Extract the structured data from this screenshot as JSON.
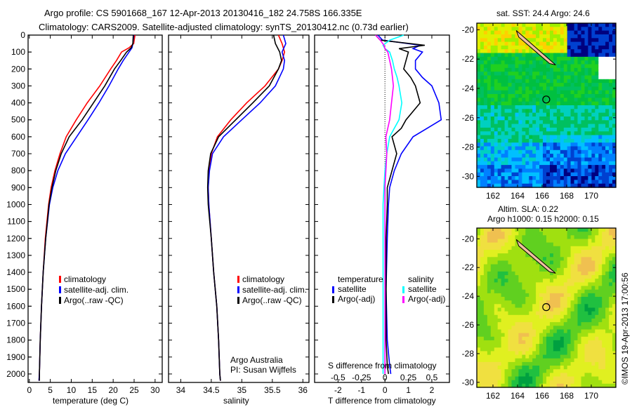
{
  "title": {
    "line1": "Argo profile: CS 5901668_167 12-Apr-2013 20130416_182 24.758S 166.335E",
    "line2": "Climatology: CARS2009. Satellite-adjusted climatology: synTS_20130412.nc (0.73d earlier)"
  },
  "colors": {
    "climatology": "#ff0000",
    "satellite": "#0000ff",
    "argo": "#000000",
    "sal_satellite": "#00ffff",
    "sal_argo": "#ff00ff"
  },
  "chart_data": [
    {
      "type": "line",
      "xlabel": "temperature (deg C)",
      "ylabel": "",
      "xlim": [
        -0.3,
        31.7
      ],
      "ylim": [
        2050,
        0
      ],
      "xticks": [
        "0",
        "5",
        "10",
        "15",
        "20",
        "25",
        "30"
      ],
      "yticks": [
        "0",
        "100",
        "200",
        "300",
        "400",
        "500",
        "600",
        "700",
        "800",
        "900",
        "1000",
        "1100",
        "1200",
        "1300",
        "1400",
        "1500",
        "1600",
        "1700",
        "1800",
        "1900",
        "2000"
      ],
      "legend": [
        "climatology",
        "satellite-adj. clim.",
        "Argo(..raw -QC)"
      ],
      "depth": [
        0,
        50,
        75,
        100,
        150,
        200,
        300,
        400,
        500,
        600,
        700,
        800,
        900,
        1000,
        1200,
        1400,
        1600,
        1800,
        2000,
        2040
      ],
      "series": [
        {
          "name": "climatology",
          "values": [
            25.2,
            24.9,
            23.8,
            22.0,
            20.8,
            19.4,
            16.8,
            13.8,
            11.2,
            8.8,
            7.3,
            6.1,
            5.2,
            4.6,
            3.8,
            3.3,
            2.9,
            2.6,
            2.4,
            2.3
          ]
        },
        {
          "name": "satellite-adj. clim.",
          "values": [
            24.9,
            24.7,
            24.5,
            23.8,
            22.4,
            21.2,
            19.0,
            16.6,
            14.0,
            11.3,
            8.6,
            6.8,
            5.6,
            4.8,
            3.9,
            3.3,
            2.9,
            2.6,
            2.4,
            2.3
          ]
        },
        {
          "name": "Argo(..raw -QC)",
          "values": [
            24.8,
            24.7,
            24.3,
            23.2,
            21.8,
            20.3,
            18.0,
            15.3,
            12.6,
            9.5,
            7.6,
            6.3,
            5.4,
            4.7,
            3.9,
            3.3,
            2.9,
            2.6,
            2.4,
            2.4
          ]
        }
      ]
    },
    {
      "type": "line",
      "xlabel": "salinity",
      "xlim": [
        33.8,
        36.1
      ],
      "ylim": [
        2050,
        0
      ],
      "xticks": [
        "34",
        "34.5",
        "35",
        "35.5",
        "36"
      ],
      "legend": [
        "climatology",
        "satellite-adj. clim.",
        "Argo(..raw -QC)"
      ],
      "annotation": [
        "Argo Australia",
        "PI: Susan Wijffels"
      ],
      "depth": [
        0,
        50,
        100,
        150,
        200,
        300,
        400,
        500,
        600,
        700,
        800,
        900,
        1000,
        1200,
        1400,
        1600,
        1800,
        2000,
        2040
      ],
      "series": [
        {
          "name": "climatology",
          "values": [
            35.6,
            35.66,
            35.7,
            35.66,
            35.6,
            35.38,
            35.08,
            34.82,
            34.6,
            34.5,
            34.46,
            34.45,
            34.46,
            34.5,
            34.54,
            34.59,
            34.62,
            34.64,
            34.65
          ]
        },
        {
          "name": "satellite-adj. clim.",
          "values": [
            35.68,
            35.72,
            35.66,
            35.7,
            35.68,
            35.55,
            35.3,
            35.0,
            34.7,
            34.52,
            34.47,
            34.45,
            34.46,
            34.5,
            34.54,
            34.59,
            34.62,
            34.64,
            34.65
          ]
        },
        {
          "name": "Argo(..raw -QC)",
          "values": [
            35.52,
            35.55,
            35.62,
            35.65,
            35.6,
            35.45,
            35.18,
            34.9,
            34.62,
            34.49,
            34.45,
            34.44,
            34.45,
            34.5,
            34.54,
            34.59,
            34.62,
            34.64,
            34.65
          ]
        }
      ]
    },
    {
      "type": "line",
      "xlabel": "T difference from climatology",
      "x2label": "S difference from climatology",
      "xlim": [
        -3,
        2.75
      ],
      "ylim": [
        2050,
        0
      ],
      "xticks": [
        "-2",
        "-1",
        "0",
        "1",
        "2"
      ],
      "x2ticks": [
        "-0.5",
        "-0.25",
        "0",
        "0.25",
        "0.5"
      ],
      "legend_temperature": {
        "title": "temperature",
        "items": [
          "satellite",
          "Argo(-adj)"
        ]
      },
      "legend_salinity": {
        "title": "salinity",
        "items": [
          "satellite",
          "Argo(-adj)"
        ]
      },
      "depth": [
        0,
        30,
        60,
        80,
        100,
        150,
        200,
        250,
        300,
        400,
        500,
        550,
        600,
        700,
        800,
        900,
        1000,
        1200,
        1500,
        1800,
        1950,
        2000
      ],
      "series": [
        {
          "name": "T satellite",
          "values": [
            -0.3,
            -0.1,
            1.5,
            1.2,
            1.6,
            1.3,
            1.3,
            1.6,
            2.0,
            2.3,
            2.4,
            1.8,
            1.2,
            0.7,
            0.4,
            0.2,
            0.15,
            0.1,
            0.05,
            0.1,
            0.2,
            0.25
          ]
        },
        {
          "name": "T Argo(-adj)",
          "values": [
            -0.4,
            -0.2,
            1.7,
            0.6,
            1.0,
            0.9,
            0.8,
            1.1,
            1.3,
            1.5,
            0.9,
            0.7,
            0.3,
            0.5,
            0.3,
            0.1,
            0.1,
            0.05,
            0.05,
            0.05,
            0.1,
            0.15
          ]
        },
        {
          "name": "S satellite",
          "values": [
            0.2,
            0.05,
            -0.02,
            0,
            0.05,
            0.08,
            0.1,
            0.13,
            0.15,
            0.18,
            0.15,
            0.1,
            0.05,
            0.02,
            0,
            -0.01,
            -0.02,
            -0.02,
            -0.02,
            -0.02,
            -0.02,
            -0.02
          ]
        },
        {
          "name": "S Argo(-adj)",
          "values": [
            -0.1,
            -0.05,
            -0.01,
            0,
            0.03,
            0.05,
            0.07,
            0.08,
            0.09,
            0.07,
            0.05,
            0.03,
            0.01,
            0.02,
            0.01,
            0,
            0,
            0,
            0,
            0,
            0,
            0
          ]
        }
      ]
    }
  ],
  "maps": [
    {
      "title": "sat. SST: 24.4 Argo: 24.6",
      "lat_ticks": [
        "-20",
        "-22",
        "-24",
        "-26",
        "-28",
        "-30"
      ],
      "lon_ticks": [
        "162",
        "164",
        "166",
        "168",
        "170"
      ]
    },
    {
      "title_line1": "Altim. SLA: 0.22",
      "title_line2": "Argo h1000: 0.15 h2000: 0.15",
      "lat_ticks": [
        "-20",
        "-22",
        "-24",
        "-26",
        "-28",
        "-30"
      ],
      "lon_ticks": [
        "162",
        "164",
        "166",
        "168",
        "170"
      ]
    }
  ],
  "credit": "©IMOS 19-Apr-2013 17:00:56"
}
